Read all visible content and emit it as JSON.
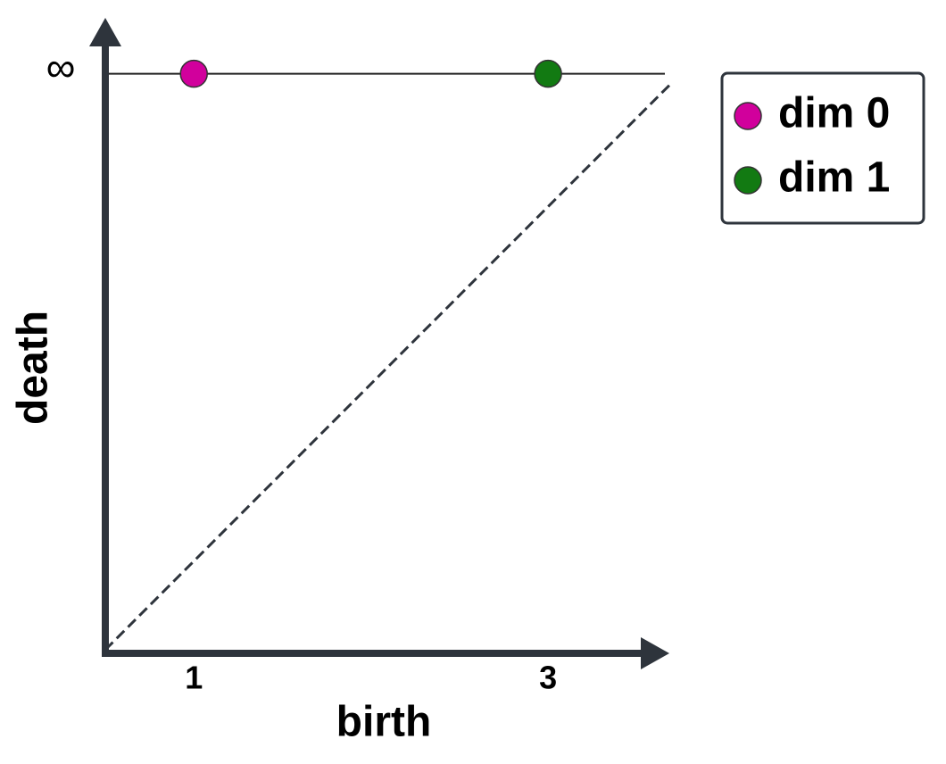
{
  "chart_data": {
    "type": "scatter",
    "x_label": "birth",
    "y_label": "death",
    "series": [
      {
        "name": "dim 0",
        "color": "#d1009c",
        "x": [
          1
        ],
        "values": [
          3.75
        ]
      },
      {
        "name": "dim 1",
        "color": "#127a12",
        "x": [
          3
        ],
        "values": [
          3.75
        ]
      }
    ],
    "xlim": [
      0.5,
      3.7
    ],
    "ylim": [
      0.5,
      4.0
    ],
    "xticks": [
      1,
      3
    ],
    "yticks": [
      {
        "value": 3.75,
        "label": "∞"
      }
    ],
    "diagonal": true,
    "legend": "right"
  }
}
